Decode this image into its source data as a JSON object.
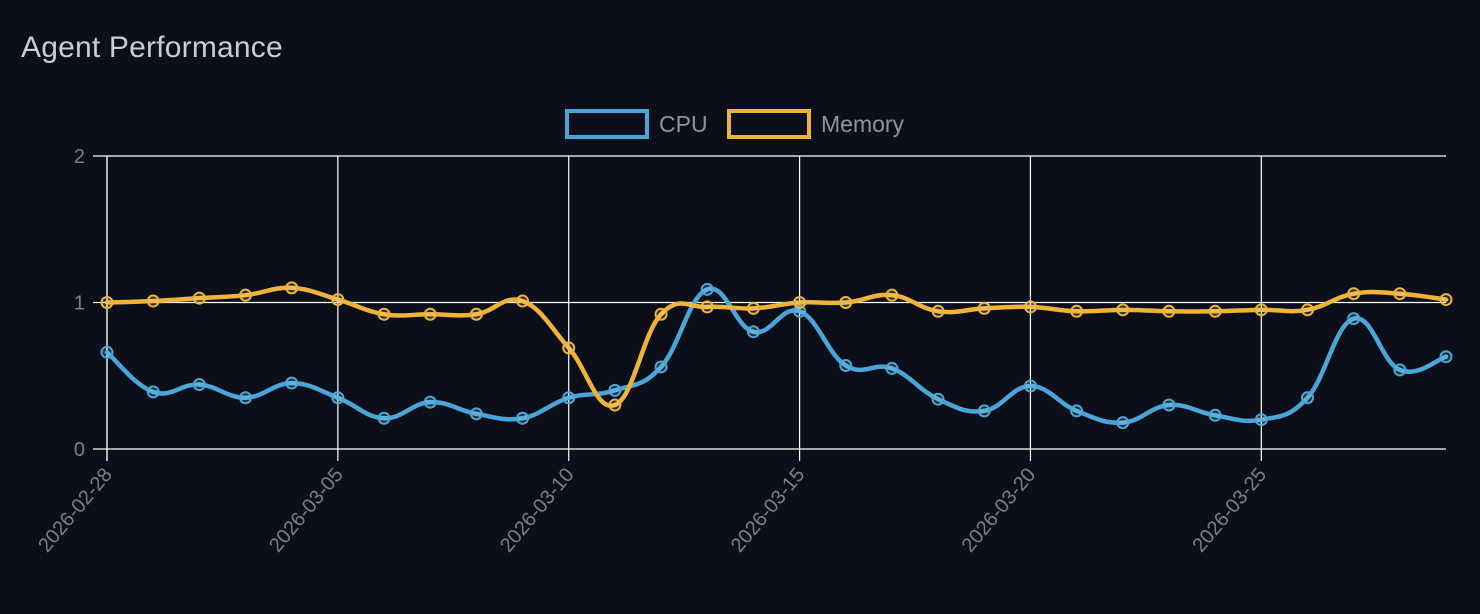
{
  "header": {
    "title": "Agent Performance"
  },
  "colors": {
    "background": "#0b0f1a",
    "grid": "#ffffff",
    "cpu": "#4aa6d8",
    "memory": "#efb33a",
    "text": "#c9cdd6",
    "tick_text": "#7a7f88"
  },
  "chart_data": {
    "type": "line",
    "title": "Agent Performance",
    "xlabel": "",
    "ylabel": "",
    "ylim": [
      0,
      2
    ],
    "y_ticks": [
      "0",
      "1",
      "2"
    ],
    "y_tick_values": [
      0,
      1,
      2
    ],
    "x_tick_labels": [
      "2026-02-28",
      "2026-03-05",
      "2026-03-10",
      "2026-03-15",
      "2026-03-20",
      "2026-03-25"
    ],
    "x_tick_indices": [
      0,
      5,
      10,
      15,
      20,
      25
    ],
    "legend_position": "top-center",
    "grid": true,
    "x": [
      "2026-02-28",
      "2026-03-01",
      "2026-03-02",
      "2026-03-03",
      "2026-03-04",
      "2026-03-05",
      "2026-03-06",
      "2026-03-07",
      "2026-03-08",
      "2026-03-09",
      "2026-03-10",
      "2026-03-11",
      "2026-03-12",
      "2026-03-13",
      "2026-03-14",
      "2026-03-15",
      "2026-03-16",
      "2026-03-17",
      "2026-03-18",
      "2026-03-19",
      "2026-03-20",
      "2026-03-21",
      "2026-03-22",
      "2026-03-23",
      "2026-03-24",
      "2026-03-25",
      "2026-03-26",
      "2026-03-27",
      "2026-03-28",
      "2026-03-29"
    ],
    "series": [
      {
        "name": "CPU",
        "values": [
          0.66,
          0.39,
          0.44,
          0.35,
          0.45,
          0.35,
          0.21,
          0.32,
          0.24,
          0.21,
          0.35,
          0.4,
          0.56,
          1.09,
          0.8,
          0.94,
          0.57,
          0.55,
          0.34,
          0.26,
          0.43,
          0.26,
          0.18,
          0.3,
          0.23,
          0.2,
          0.35,
          0.89,
          0.54,
          0.63
        ]
      },
      {
        "name": "Memory",
        "values": [
          1.0,
          1.01,
          1.03,
          1.05,
          1.1,
          1.02,
          0.92,
          0.92,
          0.92,
          1.01,
          0.69,
          0.3,
          0.92,
          0.97,
          0.96,
          1.0,
          1.0,
          1.05,
          0.94,
          0.96,
          0.97,
          0.94,
          0.95,
          0.94,
          0.94,
          0.95,
          0.95,
          1.06,
          1.06,
          1.02
        ]
      }
    ]
  }
}
